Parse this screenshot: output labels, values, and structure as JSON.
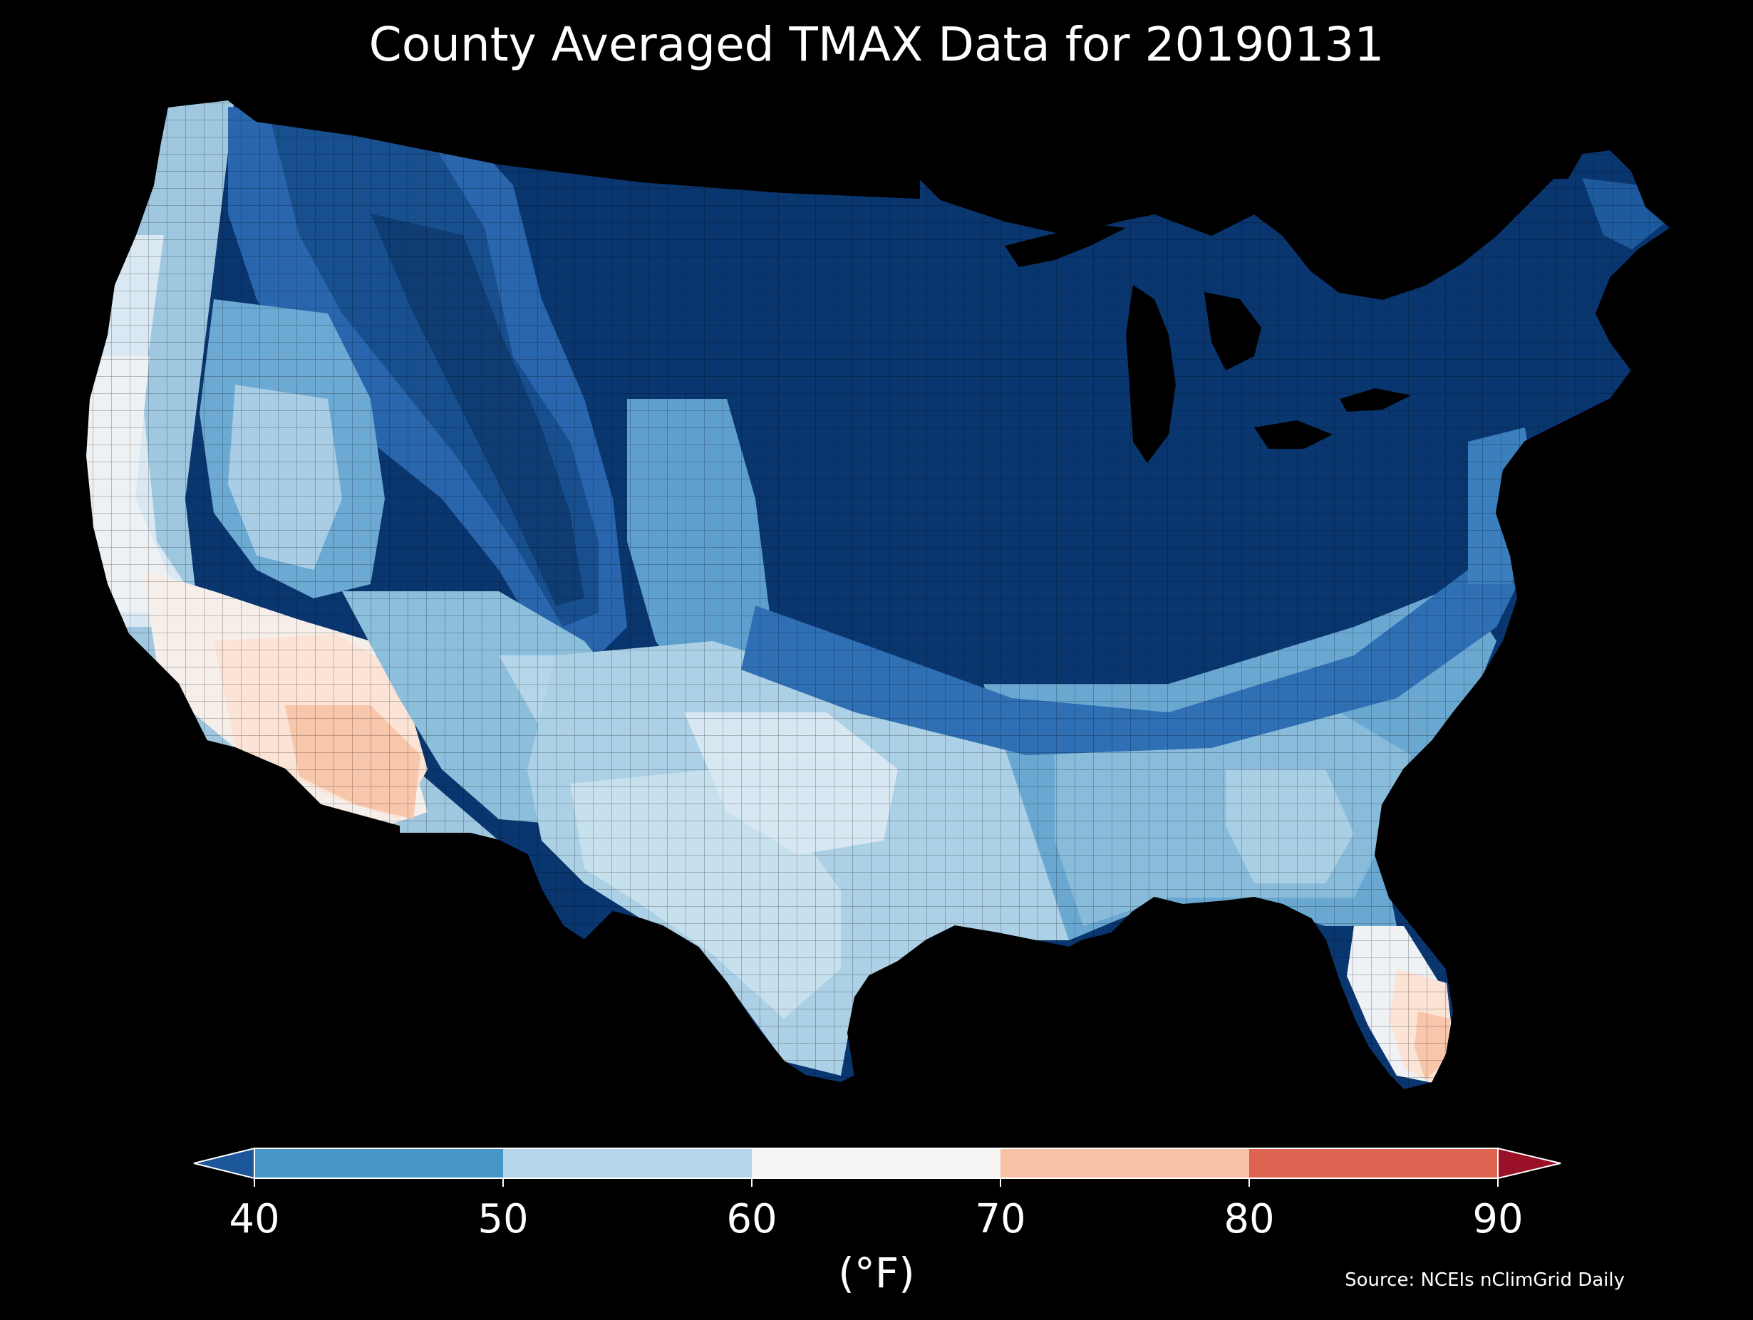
{
  "map": {
    "title": "County Averaged TMAX Data for 20190131",
    "region": "Contiguous United States (county choropleth)"
  },
  "colorbar": {
    "unit_label": "(°F)",
    "ticks": [
      "40",
      "50",
      "60",
      "70",
      "80",
      "90"
    ],
    "bins": [
      {
        "range": "<40",
        "color": "#1b5799"
      },
      {
        "range": "40-50",
        "color": "#4895c8"
      },
      {
        "range": "50-60",
        "color": "#b5d6e8"
      },
      {
        "range": "60-70",
        "color": "#f5f5f5"
      },
      {
        "range": "70-80",
        "color": "#f8c2a6"
      },
      {
        "range": "80-90",
        "color": "#dc6451"
      },
      {
        "range": ">90",
        "color": "#9a1127"
      }
    ],
    "extend": "both"
  },
  "source": {
    "text": "Source: NCEIs nClimGrid Daily"
  },
  "palette": {
    "very_dark_blue": "#08306b",
    "dark_blue": "#0d3f7d",
    "blue": "#2166ac",
    "mid_blue": "#4393c3",
    "light_blue": "#92c5de",
    "pale_blue": "#d1e5f0",
    "near_white": "#f2f2f2",
    "pale_orange": "#fbe3d6",
    "orange": "#f8c2a6"
  }
}
